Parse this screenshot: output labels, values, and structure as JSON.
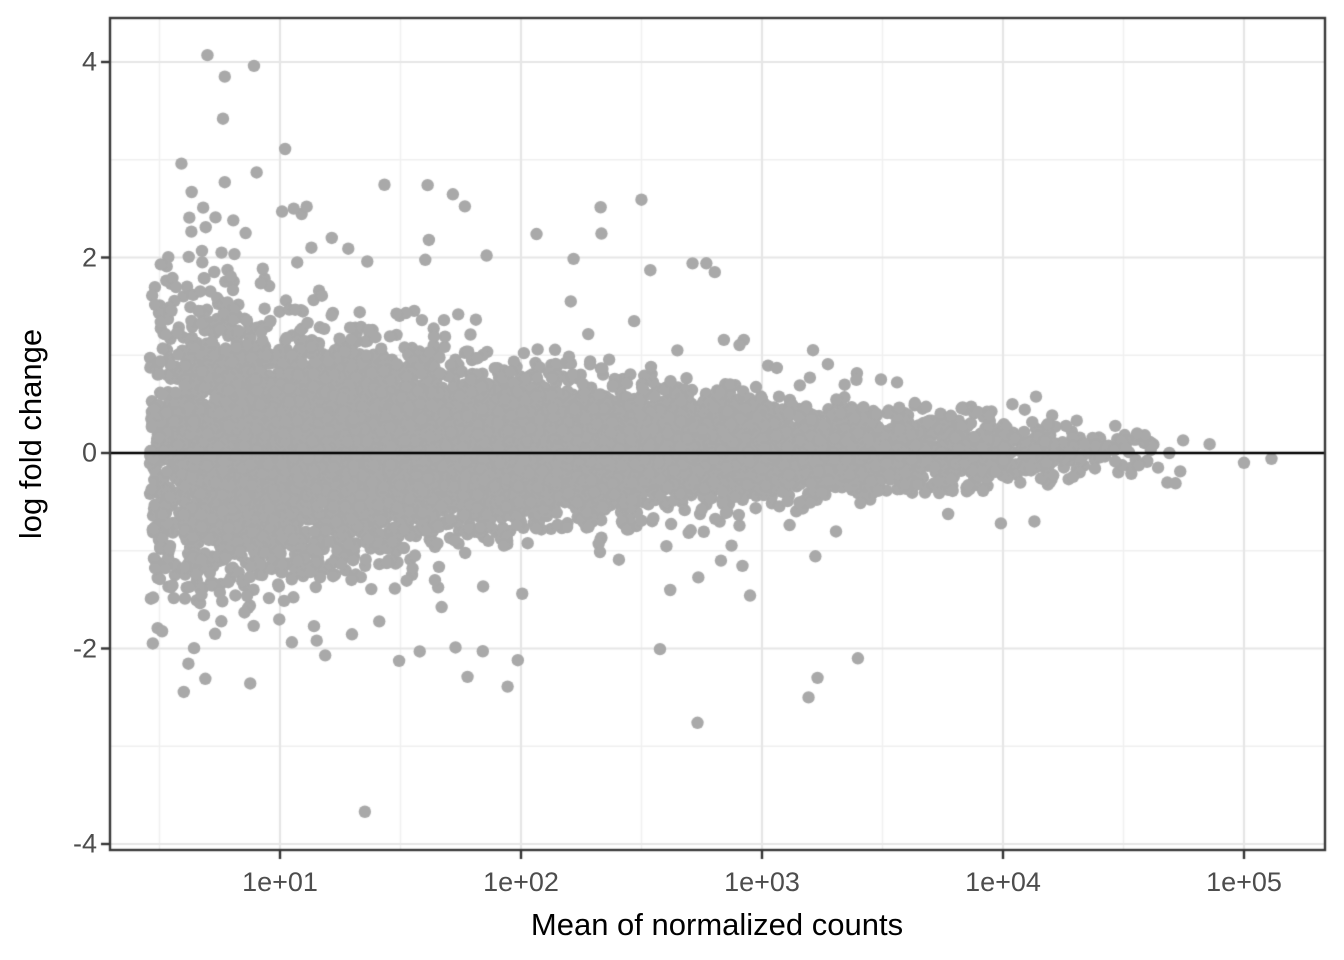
{
  "figure": {
    "background": "#ffffff"
  },
  "chart_data": {
    "type": "scatter",
    "title": "",
    "xlabel": "Mean of normalized counts",
    "ylabel": "log fold change",
    "x_scale": "log10",
    "xlim_log10": [
      0.295,
      5.336
    ],
    "ylim": [
      -4.06,
      4.45
    ],
    "grid": true,
    "legend": "none",
    "x_ticks": [
      {
        "value": 10,
        "label": "1e+01"
      },
      {
        "value": 100,
        "label": "1e+02"
      },
      {
        "value": 1000,
        "label": "1e+03"
      },
      {
        "value": 10000,
        "label": "1e+04"
      },
      {
        "value": 100000,
        "label": "1e+05"
      }
    ],
    "y_ticks": [
      {
        "value": 4,
        "label": "4"
      },
      {
        "value": 2,
        "label": "2"
      },
      {
        "value": 0,
        "label": "0"
      },
      {
        "value": -2,
        "label": "-2"
      },
      {
        "value": -4,
        "label": "-4"
      }
    ],
    "x_minor_log10": [
      0.5,
      1.5,
      2.5,
      3.5,
      4.5
    ],
    "y_minor": [
      -3,
      -1,
      1,
      3
    ],
    "zero_line": {
      "y": 0,
      "color": "#000000",
      "width": 2.6
    },
    "colors": {
      "point": "#a9a9a9",
      "grid_major": "#e6e6e6",
      "grid_minor": "#f0f0f0",
      "panel_border": "#383838",
      "tick_mark": "#333333",
      "tick_label": "#4d4d4d",
      "axis_title": "#000000",
      "panel_background": "#ffffff"
    },
    "points_style": {
      "radius": 6.2
    },
    "cloud": {
      "seed": 7,
      "count": 12000,
      "x_log10_density": {
        "breaks": [
          0.46,
          0.6,
          0.72,
          1.0,
          1.5,
          2.0,
          2.5,
          3.0,
          3.5,
          4.0,
          4.3,
          4.6,
          4.8
        ],
        "density": [
          0.1,
          0.55,
          1.0,
          1.0,
          0.95,
          0.85,
          0.7,
          0.55,
          0.37,
          0.11,
          0.05,
          0.012,
          0.0
        ]
      },
      "sigma": {
        "a": 0.68,
        "x0": 0.46,
        "tau": 1.75,
        "c": 0.07
      },
      "mean_shift_sigma": 0.08,
      "heavy_tail": {
        "prob": 0.022,
        "mult_min": 1.9,
        "mult_range": 2.4,
        "up_bias": 0.6
      },
      "abs_y_cap": 2.75
    },
    "outliers": [
      [
        5.0,
        4.07
      ],
      [
        7.8,
        3.96
      ],
      [
        5.9,
        3.85
      ],
      [
        5.8,
        3.42
      ],
      [
        10.5,
        3.11
      ],
      [
        3.9,
        2.96
      ],
      [
        8.0,
        2.87
      ],
      [
        5.9,
        2.77
      ],
      [
        4.3,
        2.67
      ],
      [
        4.8,
        2.51
      ],
      [
        5.4,
        2.41
      ],
      [
        6.4,
        2.38
      ],
      [
        7.2,
        2.25
      ],
      [
        10.2,
        2.47
      ],
      [
        11.4,
        2.5
      ],
      [
        12.9,
        2.52
      ],
      [
        13.5,
        2.1
      ],
      [
        16.4,
        2.2
      ],
      [
        19.2,
        2.09
      ],
      [
        116,
        2.24
      ],
      [
        72,
        2.02
      ],
      [
        344,
        1.87
      ],
      [
        515,
        1.94
      ],
      [
        637,
        1.85
      ],
      [
        3.2,
        1.93
      ],
      [
        3.2,
        1.34
      ],
      [
        2.9,
        0.02
      ],
      [
        3.5,
        -0.45
      ],
      [
        4.2,
        -1.37
      ],
      [
        22.5,
        -3.67
      ],
      [
        540,
        -2.76
      ],
      [
        4.9,
        -2.31
      ],
      [
        60,
        -2.29
      ],
      [
        88,
        -2.39
      ],
      [
        15.4,
        -2.07
      ],
      [
        38,
        -2.03
      ],
      [
        2500,
        -2.1
      ],
      [
        1700,
        -2.3
      ],
      [
        1560,
        -2.5
      ],
      [
        97,
        -2.12
      ],
      [
        9800,
        -0.72
      ],
      [
        13500,
        -0.7
      ],
      [
        49000,
        0.0
      ],
      [
        72000,
        0.09
      ],
      [
        100000,
        -0.1
      ],
      [
        130000,
        -0.06
      ],
      [
        52000,
        -0.31
      ],
      [
        41000,
        0.03
      ],
      [
        44000,
        -0.15
      ],
      [
        36000,
        0.2
      ]
    ]
  }
}
